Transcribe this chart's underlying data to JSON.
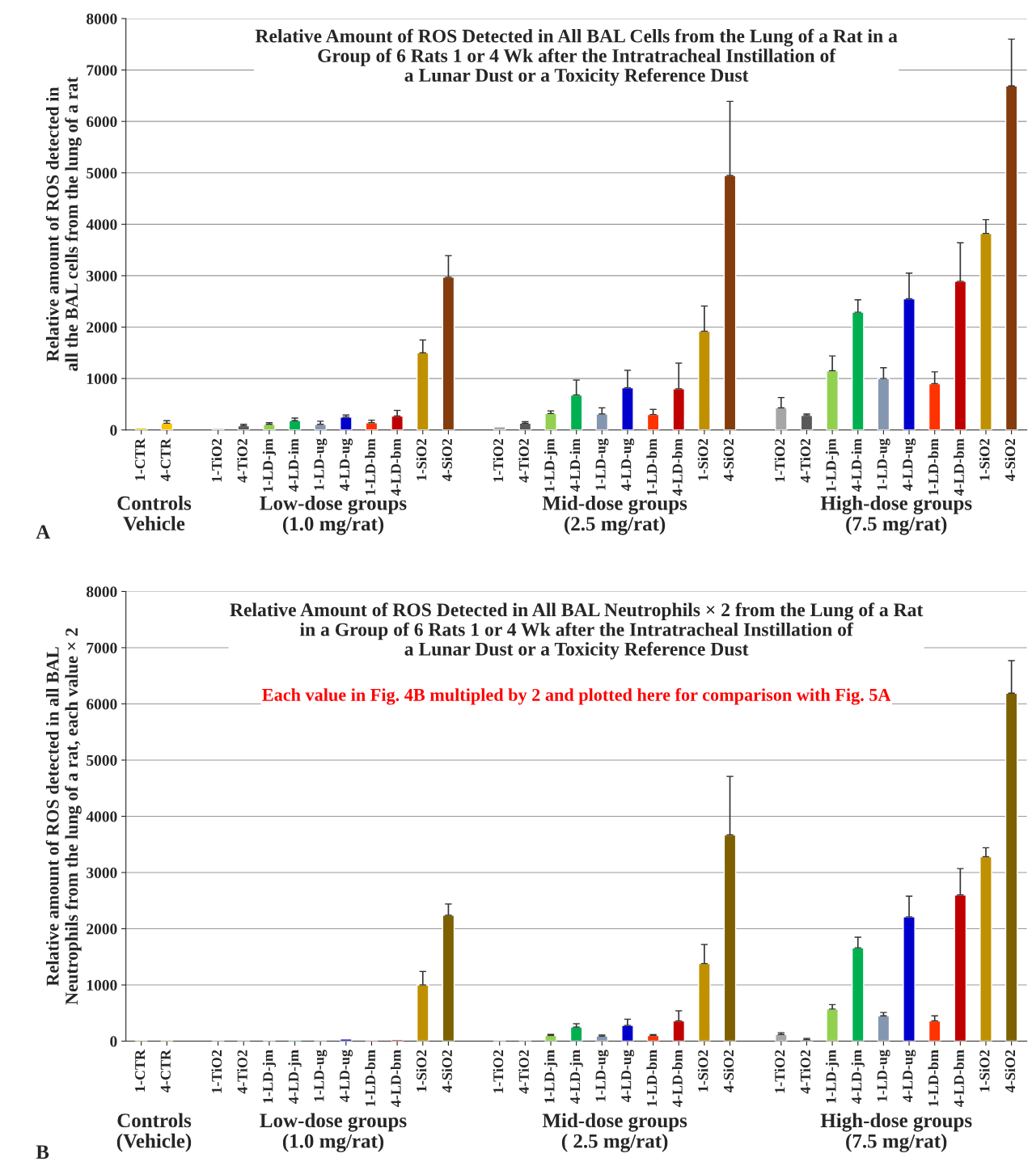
{
  "chart_data": [
    {
      "type": "bar",
      "title": "Relative Amount of ROS Detected in All BAL Cells from the Lung of a Rat in a\nGroup of 6 Rats 1 or 4 Wk after the Intratracheal Instillation of\na Lunar Dust or a Toxicity Reference Dust",
      "ylabel": "Relative amount of ROS detected in\nall the BAL cells from the lung of a rat",
      "categories": [
        "1-CTR",
        "4-CTR",
        null,
        "1-TiO2",
        "4-TiO2",
        "1-LD-jm",
        "4-LD-im",
        "1-LD-ug",
        "4-LD-ug",
        "1-LD-bm",
        "4-LD-bm",
        "1-SiO2",
        "4-SiO2",
        null,
        "1-TiO2",
        "4-TiO2",
        "1-LD-jm",
        "4-LD-im",
        "1-LD-ug",
        "4-LD-ug",
        "1-LD-bm",
        "4-LD-bm",
        "1-SiO2",
        "4-SiO2",
        null,
        "1-TiO2",
        "4-TiO2",
        "1-LD-jm",
        "4-LD-im",
        "1-LD-ug",
        "4-LD-ug",
        "1-LD-bm",
        "4-LD-bm",
        "1-SiO2",
        "4-SiO2"
      ],
      "values": [
        40,
        130,
        null,
        30,
        80,
        110,
        180,
        110,
        250,
        140,
        270,
        1500,
        2970,
        null,
        60,
        130,
        320,
        680,
        310,
        820,
        300,
        800,
        1920,
        4950,
        null,
        430,
        280,
        1150,
        2290,
        1000,
        2550,
        900,
        2890,
        3820,
        6690
      ],
      "errors": [
        null,
        [
          130,
          180
        ],
        null,
        null,
        [
          80,
          110
        ],
        [
          110,
          140
        ],
        [
          180,
          230
        ],
        [
          110,
          170
        ],
        [
          250,
          290
        ],
        [
          140,
          190
        ],
        [
          270,
          380
        ],
        [
          1500,
          1750
        ],
        [
          2970,
          3390
        ],
        null,
        null,
        [
          130,
          160
        ],
        [
          320,
          370
        ],
        [
          680,
          970
        ],
        [
          310,
          430
        ],
        [
          820,
          1160
        ],
        [
          300,
          400
        ],
        [
          800,
          1300
        ],
        [
          1920,
          2410
        ],
        [
          4950,
          6390
        ],
        null,
        [
          430,
          630
        ],
        [
          280,
          310
        ],
        [
          1150,
          1440
        ],
        [
          2290,
          2530
        ],
        [
          1000,
          1210
        ],
        [
          2550,
          3050
        ],
        [
          900,
          1130
        ],
        [
          2890,
          3640
        ],
        [
          3820,
          4090
        ],
        [
          6690,
          7600
        ]
      ],
      "colors": [
        "#e6c800",
        "#ffc000",
        null,
        "#a6a6a6",
        "#595959",
        "#92d050",
        "#00b050",
        "#8497b0",
        "#0000cc",
        "#ff3300",
        "#c00000",
        "#bf9000",
        "#843c0c",
        null,
        "#a6a6a6",
        "#595959",
        "#92d050",
        "#00b050",
        "#8497b0",
        "#0000cc",
        "#ff3300",
        "#c00000",
        "#bf9000",
        "#843c0c",
        null,
        "#a6a6a6",
        "#595959",
        "#92d050",
        "#00b050",
        "#8497b0",
        "#0000cc",
        "#ff3300",
        "#c00000",
        "#bf9000",
        "#843c0c"
      ],
      "ylim": [
        0,
        8000
      ],
      "yticks": [
        0,
        1000,
        2000,
        3000,
        4000,
        5000,
        6000,
        7000,
        8000
      ],
      "grid": "y",
      "annotations": [
        "A",
        "Controls\nVehicle",
        "Low-dose groups\n(1.0 mg/rat)",
        "Mid-dose groups\n(2.5 mg/rat)",
        "High-dose groups\n(7.5 mg/rat)"
      ]
    },
    {
      "type": "bar",
      "title": "Relative Amount of ROS Detected in All BAL Neutrophils × 2 from the Lung of a Rat\nin a Group of 6 Rats 1 or 4 Wk after the Intratracheal Instillation of\na Lunar Dust or a Toxicity Reference Dust",
      "subtitle": "Each value in Fig. 4B multipled by 2 and plotted here for comparison with Fig. 5A",
      "ylabel": "Relative amount of ROS detected in all BAL\nNeutrophils from the lung of a rat, each value × 2",
      "categories": [
        "1-CTR",
        "4-CTR",
        null,
        "1-TiO2",
        "4-TiO2",
        "1-LD-jm",
        "4-LD-jm",
        "1-LD-ug",
        "4-LD-ug",
        "1-LD-bm",
        "4-LD-bm",
        "1-SiO2",
        "4-SiO2",
        null,
        "1-TiO2",
        "4-TiO2",
        "1-LD-jm",
        "4-LD-jm",
        "1-LD-ug",
        "4-LD-ug",
        "1-LD-bm",
        "4-LD-bm",
        "1-SiO2",
        "4-SiO2",
        null,
        "1-TiO2",
        "4-TiO2",
        "1-LD-jm",
        "4-LD-jm",
        "1-LD-ug",
        "4-LD-ug",
        "1-LD-bm",
        "4-LD-bm",
        "1-SiO2",
        "4-SiO2"
      ],
      "values": [
        10,
        10,
        null,
        10,
        10,
        20,
        10,
        10,
        40,
        10,
        30,
        1000,
        2240,
        null,
        10,
        10,
        100,
        250,
        90,
        280,
        100,
        360,
        1380,
        3670,
        null,
        120,
        30,
        570,
        1660,
        450,
        2210,
        360,
        2600,
        3280,
        6190
      ],
      "errors": [
        null,
        null,
        null,
        null,
        null,
        null,
        null,
        null,
        null,
        null,
        null,
        [
          1000,
          1240
        ],
        [
          2240,
          2440
        ],
        null,
        null,
        null,
        [
          100,
          120
        ],
        [
          250,
          310
        ],
        [
          90,
          110
        ],
        [
          280,
          390
        ],
        [
          100,
          115
        ],
        [
          360,
          540
        ],
        [
          1380,
          1720
        ],
        [
          3670,
          4710
        ],
        null,
        [
          120,
          150
        ],
        [
          30,
          50
        ],
        [
          570,
          650
        ],
        [
          1660,
          1850
        ],
        [
          450,
          510
        ],
        [
          2210,
          2580
        ],
        [
          360,
          450
        ],
        [
          2600,
          3070
        ],
        [
          3280,
          3440
        ],
        [
          6190,
          6770
        ]
      ],
      "colors": [
        "#e6c800",
        "#ffc000",
        null,
        "#a6a6a6",
        "#595959",
        "#92d050",
        "#00b050",
        "#8497b0",
        "#0000cc",
        "#ff3300",
        "#c00000",
        "#bf9000",
        "#7f6000",
        null,
        "#a6a6a6",
        "#595959",
        "#92d050",
        "#00b050",
        "#8497b0",
        "#0000cc",
        "#ff3300",
        "#c00000",
        "#bf9000",
        "#7f6000",
        null,
        "#a6a6a6",
        "#595959",
        "#92d050",
        "#00b050",
        "#8497b0",
        "#0000cc",
        "#ff3300",
        "#c00000",
        "#bf9000",
        "#7f6000"
      ],
      "ylim": [
        0,
        8000
      ],
      "yticks": [
        0,
        1000,
        2000,
        3000,
        4000,
        5000,
        6000,
        7000,
        8000
      ],
      "grid": "y",
      "annotations": [
        "B",
        "Controls\n(Vehicle)",
        "Low-dose groups\n(1.0 mg/rat)",
        "Mid-dose groups\n( 2.5 mg/rat)",
        "High-dose groups\n(7.5 mg/rat)"
      ]
    }
  ]
}
